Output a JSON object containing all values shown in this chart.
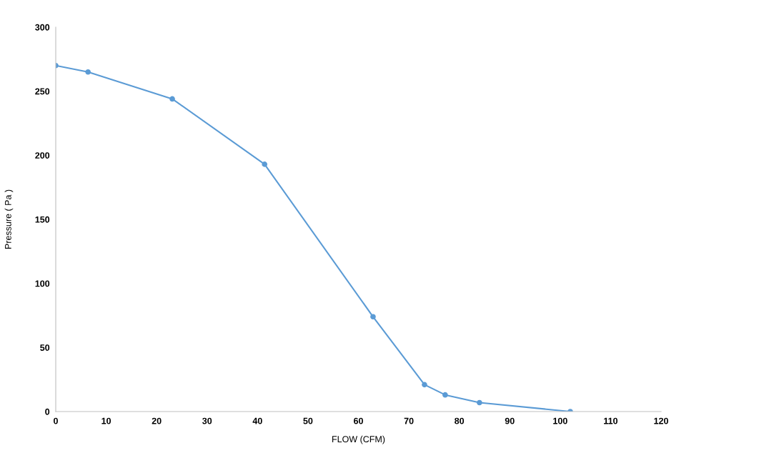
{
  "chart_data": {
    "type": "line",
    "xlabel": "FLOW (CFM)",
    "ylabel": "Pressure ( Pa )",
    "series": [
      {
        "color": "#5b9bd5",
        "x": [
          0,
          6.4,
          23.1,
          41.4,
          62.9,
          73.1,
          77.2,
          84.0,
          102
        ],
        "values": [
          270,
          265,
          244,
          193,
          74,
          21,
          13,
          7,
          0
        ]
      }
    ],
    "xlim": [
      0,
      120
    ],
    "xticks": [
      0,
      10,
      20,
      30,
      40,
      50,
      60,
      70,
      80,
      90,
      100,
      110,
      120
    ],
    "ylim": [
      0,
      300
    ],
    "yticks": [
      0,
      50,
      100,
      150,
      200,
      250,
      300
    ],
    "grid": false,
    "marker": "circle",
    "line_style": "solid"
  }
}
